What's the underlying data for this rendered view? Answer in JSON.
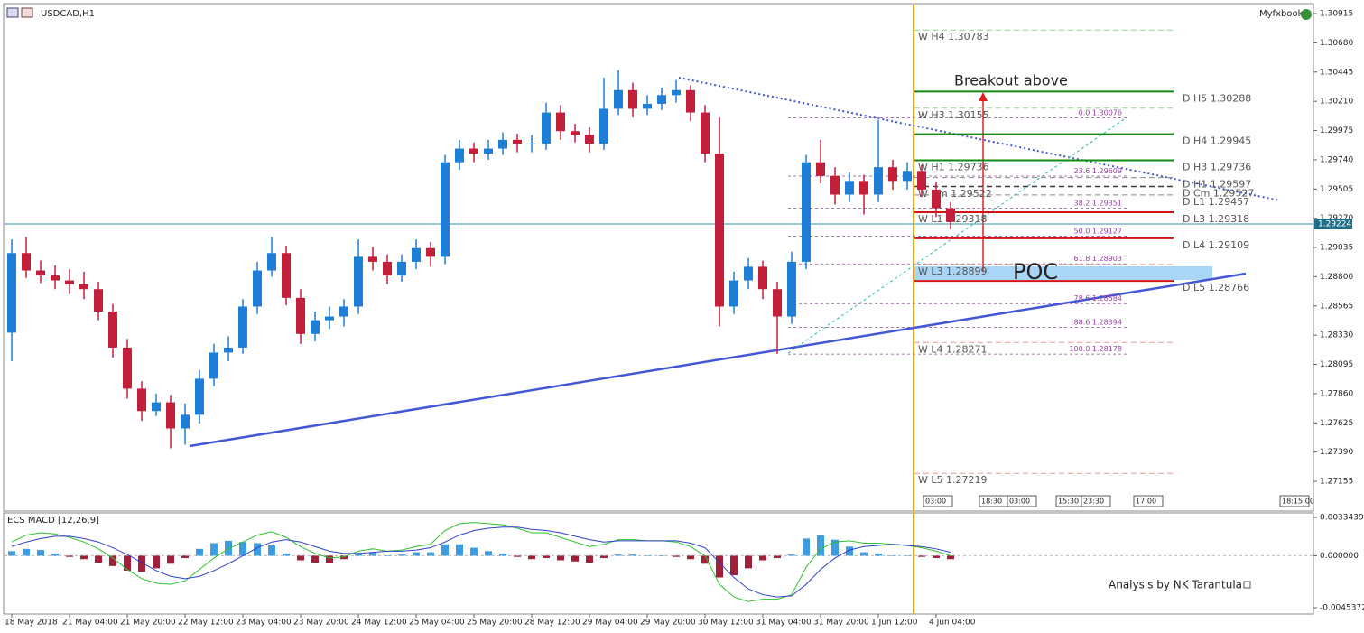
{
  "chart_data": [
    {
      "type": "candlestick",
      "title": "USDCAD,H1",
      "brand": "Myfxbook",
      "categories": [
        "18 May 2018",
        null,
        null,
        null,
        "21 May 04:00",
        null,
        null,
        null,
        "21 May 20:00",
        null,
        null,
        null,
        "22 May 12:00",
        null,
        null,
        null,
        "23 May 04:00",
        null,
        null,
        null,
        "23 May 20:00",
        null,
        null,
        null,
        "24 May 12:00",
        null,
        null,
        null,
        "25 May 04:00",
        null,
        null,
        null,
        "25 May 20:00",
        null,
        null,
        null,
        "28 May 12:00",
        null,
        null,
        null,
        "29 May 04:00",
        null,
        null,
        null,
        "29 May 20:00",
        null,
        null,
        null,
        "30 May 12:00",
        null,
        null,
        null,
        "31 May 04:00",
        null,
        null,
        null,
        "31 May 20:00",
        null,
        null,
        null,
        "1 Jun 12:00",
        null,
        null,
        null,
        "4 Jun 04:00",
        null
      ],
      "open": [
        1.2835,
        1.2899,
        1.2885,
        1.2881,
        1.2877,
        1.2874,
        1.287,
        1.2852,
        1.2823,
        1.279,
        1.2772,
        1.2779,
        1.2758,
        1.2769,
        1.2798,
        1.2819,
        1.2823,
        1.2856,
        1.2885,
        1.2899,
        1.2863,
        1.2834,
        1.2845,
        1.2848,
        1.2856,
        1.2896,
        1.2892,
        1.2881,
        1.2892,
        1.2903,
        1.2896,
        1.2972,
        1.2983,
        1.2979,
        1.2983,
        1.299,
        1.2987,
        1.2987,
        1.3012,
        1.2997,
        1.2994,
        1.2987,
        1.3015,
        1.303,
        1.3015,
        1.3019,
        1.3026,
        1.303,
        1.3012,
        1.2979,
        1.2856,
        1.2877,
        1.2888,
        1.287,
        1.2848,
        1.2892,
        1.2972,
        1.2961,
        1.2946,
        1.2957,
        1.2946,
        1.2968,
        1.2957,
        1.2965,
        1.295,
        1.2935
      ],
      "high": [
        1.291,
        1.2912,
        1.2893,
        1.2889,
        1.2886,
        1.2884,
        1.2876,
        1.2858,
        1.283,
        1.2796,
        1.2786,
        1.2785,
        1.2778,
        1.2805,
        1.2826,
        1.2832,
        1.2862,
        1.2892,
        1.2912,
        1.2905,
        1.287,
        1.2852,
        1.2856,
        1.2862,
        1.291,
        1.2904,
        1.2898,
        1.2898,
        1.291,
        1.2908,
        1.2978,
        1.299,
        1.2988,
        1.299,
        1.2996,
        1.2995,
        1.2994,
        1.302,
        1.3018,
        1.3003,
        1.3,
        1.304,
        1.3046,
        1.3036,
        1.3026,
        1.3032,
        1.3038,
        1.3034,
        1.3018,
        1.3008,
        1.2884,
        1.2895,
        1.2893,
        1.2876,
        1.29,
        1.2978,
        1.299,
        1.2968,
        1.2964,
        1.2962,
        1.3006,
        1.2974,
        1.2972,
        1.297,
        1.2956,
        1.294
      ],
      "low": [
        1.2812,
        1.2879,
        1.2875,
        1.287,
        1.2866,
        1.2862,
        1.2845,
        1.2815,
        1.2782,
        1.2764,
        1.2768,
        1.2742,
        1.2745,
        1.2762,
        1.2792,
        1.2812,
        1.2818,
        1.285,
        1.288,
        1.2857,
        1.2826,
        1.2828,
        1.2838,
        1.284,
        1.285,
        1.2885,
        1.2874,
        1.2876,
        1.2886,
        1.2888,
        1.289,
        1.2966,
        1.2972,
        1.2974,
        1.2978,
        1.298,
        1.298,
        1.2982,
        1.299,
        1.2988,
        1.298,
        1.2982,
        1.301,
        1.3008,
        1.301,
        1.3014,
        1.302,
        1.3005,
        1.2972,
        1.284,
        1.285,
        1.287,
        1.2862,
        1.2818,
        1.2842,
        1.2886,
        1.2955,
        1.2938,
        1.294,
        1.293,
        1.294,
        1.295,
        1.295,
        1.2944,
        1.2928,
        1.2918
      ],
      "close": [
        1.2899,
        1.2885,
        1.2881,
        1.2877,
        1.2874,
        1.287,
        1.2852,
        1.2823,
        1.279,
        1.2772,
        1.2779,
        1.2758,
        1.2769,
        1.2798,
        1.2819,
        1.2823,
        1.2856,
        1.2885,
        1.2899,
        1.2863,
        1.2834,
        1.2845,
        1.2848,
        1.2856,
        1.2896,
        1.2892,
        1.2881,
        1.2892,
        1.2903,
        1.2896,
        1.2972,
        1.2983,
        1.2979,
        1.2983,
        1.299,
        1.2987,
        1.2987,
        1.3012,
        1.2997,
        1.2994,
        1.2987,
        1.3015,
        1.303,
        1.3015,
        1.3019,
        1.3026,
        1.303,
        1.3012,
        1.2979,
        1.2856,
        1.2877,
        1.2888,
        1.287,
        1.2848,
        1.2892,
        1.2972,
        1.2961,
        1.2946,
        1.2957,
        1.2946,
        1.2968,
        1.2957,
        1.2965,
        1.295,
        1.2935,
        1.2924
      ],
      "up_color": "#1f7fd6",
      "down_color": "#c21f3a",
      "ylim": [
        1.26923,
        1.30988
      ],
      "yticks": [
        1.30915,
        {
          "value": 1.3068,
          "label": "1.30680"
        },
        1.30445,
        {
          "value": 1.3021,
          "label": "1.30210"
        },
        1.29975,
        {
          "value": 1.2974,
          "label": "1.29740"
        },
        1.29505,
        {
          "value": 1.2927,
          "label": "1.29270"
        },
        1.29035,
        {
          "value": 1.288,
          "label": "1.28800"
        },
        1.28565,
        {
          "value": 1.2833,
          "label": "1.28330"
        },
        1.28095,
        {
          "value": 1.2786,
          "label": "1.27860"
        },
        1.27625,
        {
          "value": 1.2739,
          "label": "1.27390"
        },
        1.27155
      ],
      "current_price": 1.29224,
      "pivots": [
        {
          "name": "W H4",
          "value": 1.30783,
          "color": "#8fd18f",
          "style": "dashed",
          "side": "left"
        },
        {
          "name": "W H3",
          "value": 1.30155,
          "color": "#8fd18f",
          "style": "dashed",
          "side": "left"
        },
        {
          "name": "W H1",
          "value": 1.29736,
          "color": "#8fd18f",
          "style": "dashed",
          "side": "left"
        },
        {
          "name": "W Cm",
          "value": 1.29522,
          "color": "#999999",
          "style": "dashed",
          "side": "left"
        },
        {
          "name": "W L1",
          "value": 1.29318,
          "color": "#e79a9a",
          "style": "dashed",
          "side": "left"
        },
        {
          "name": "W L3",
          "value": 1.28899,
          "color": "#e79a9a",
          "style": "dashed",
          "side": "left"
        },
        {
          "name": "W L4",
          "value": 1.28271,
          "color": "#e79a9a",
          "style": "dashed",
          "side": "left"
        },
        {
          "name": "W L5",
          "value": 1.27219,
          "color": "#e79a9a",
          "style": "dashed",
          "side": "left"
        },
        {
          "name": "D H5",
          "value": 1.30288,
          "color": "#118a11",
          "style": "solid",
          "side": "right"
        },
        {
          "name": "D H4",
          "value": 1.29945,
          "color": "#118a11",
          "style": "solid",
          "side": "right"
        },
        {
          "name": "D H3",
          "value": 1.29736,
          "color": "#118a11",
          "style": "solid",
          "side": "right"
        },
        {
          "name": "D H1",
          "value": 1.29597,
          "color": "#888888",
          "style": "dashed",
          "side": "right"
        },
        {
          "name": "D Cm",
          "value": 1.29527,
          "color": "#222222",
          "style": "dashed",
          "side": "right"
        },
        {
          "name": "D L1",
          "value": 1.29457,
          "color": "#888888",
          "style": "dashed",
          "side": "right"
        },
        {
          "name": "D L3",
          "value": 1.29318,
          "color": "#d41414",
          "style": "solid",
          "side": "right"
        },
        {
          "name": "D L4",
          "value": 1.29109,
          "color": "#d41414",
          "style": "solid",
          "side": "right"
        },
        {
          "name": "D L5",
          "value": 1.28766,
          "color": "#d41414",
          "style": "solid",
          "side": "right"
        }
      ],
      "fib_levels": [
        {
          "level": "0.0",
          "price": 1.30076
        },
        {
          "level": "23.6",
          "price": 1.29609
        },
        {
          "level": "38.2",
          "price": 1.29351
        },
        {
          "level": "50.0",
          "price": 1.29127
        },
        {
          "level": "61.8",
          "price": 1.28903
        },
        {
          "level": "78.6",
          "price": 1.28584
        },
        {
          "level": "88.6",
          "price": 1.28394
        },
        {
          "level": "100.0",
          "price": 1.28178
        }
      ],
      "fib_color": "#9b3fa8",
      "annotations": [
        "Breakout above",
        "POC",
        "Analysis by NK Tarantula"
      ],
      "time_boxes": [
        "03:00",
        "18:30",
        "03:00",
        "15:30",
        "23:30",
        "17:00",
        "18:15:00"
      ]
    },
    {
      "type": "macd",
      "title": "ECS MACD [12,26,9]",
      "ylim": [
        -0.0053252,
        0.003738
      ],
      "yticks": [
        0.0033439,
        {
          "value": 0,
          "label": "0.000000"
        },
        -0.0045372
      ],
      "histogram_up_color": "#3d9be0",
      "histogram_down_color": "#a0203a",
      "macd_color": "#2ec22e",
      "signal_color": "#3040c8",
      "histogram": [
        0.0004,
        0.0006,
        0.0005,
        0.0002,
        -0.0001,
        -0.0003,
        -0.0006,
        -0.0009,
        -0.0013,
        -0.0014,
        -0.0011,
        -0.0007,
        -0.0002,
        0.0006,
        0.0011,
        0.0013,
        0.0012,
        0.0011,
        0.0009,
        0.0002,
        -0.0004,
        -0.0006,
        -0.0006,
        -0.0003,
        0.0002,
        0.0003,
        0.0,
        0.0001,
        0.0003,
        0.0003,
        0.001,
        0.001,
        0.0007,
        0.0004,
        0.0002,
        -0.0001,
        -0.0003,
        -0.0002,
        -0.0004,
        -0.0005,
        -0.0006,
        -0.0002,
        0.0001,
        0.0001,
        0.0,
        0.0,
        -0.0001,
        -0.0003,
        -0.0007,
        -0.0019,
        -0.0017,
        -0.0011,
        -0.0004,
        -0.0002,
        0.0001,
        0.0015,
        0.0018,
        0.0014,
        0.0008,
        0.0003,
        0.0002,
        0.0,
        0.0,
        -0.0001,
        -0.0002,
        -0.0003
      ],
      "macd": [
        0.0012,
        0.0018,
        0.002,
        0.0019,
        0.0016,
        0.0012,
        0.0006,
        -0.0002,
        -0.0012,
        -0.002,
        -0.0024,
        -0.0025,
        -0.0022,
        -0.0012,
        -0.0002,
        0.0006,
        0.0012,
        0.0018,
        0.0021,
        0.0016,
        0.0008,
        0.0002,
        -0.0002,
        -0.0001,
        0.0004,
        0.0006,
        0.0004,
        0.0005,
        0.0008,
        0.001,
        0.0022,
        0.0028,
        0.0029,
        0.0028,
        0.0027,
        0.0024,
        0.002,
        0.002,
        0.0016,
        0.0012,
        0.0008,
        0.001,
        0.0014,
        0.0014,
        0.0013,
        0.0013,
        0.0012,
        0.0008,
        0.0,
        -0.0025,
        -0.0036,
        -0.004,
        -0.0038,
        -0.0038,
        -0.0034,
        -0.001,
        0.0006,
        0.0012,
        0.0013,
        0.0011,
        0.0011,
        0.001,
        0.0009,
        0.0007,
        0.0004,
        0.0
      ],
      "signal": [
        0.0008,
        0.0012,
        0.0015,
        0.0017,
        0.0017,
        0.0015,
        0.0012,
        0.0007,
        0.0001,
        -0.0006,
        -0.0013,
        -0.0018,
        -0.002,
        -0.0018,
        -0.0013,
        -0.0007,
        0.0,
        0.0007,
        0.0012,
        0.0014,
        0.0012,
        0.0008,
        0.0004,
        0.0002,
        0.0002,
        0.0003,
        0.0004,
        0.0004,
        0.0005,
        0.0007,
        0.0012,
        0.0018,
        0.0022,
        0.0024,
        0.0025,
        0.0025,
        0.0023,
        0.0022,
        0.002,
        0.0017,
        0.0014,
        0.0012,
        0.0013,
        0.0013,
        0.0013,
        0.0013,
        0.0013,
        0.0011,
        0.0007,
        -0.0006,
        -0.0019,
        -0.0029,
        -0.0034,
        -0.0036,
        -0.0035,
        -0.0025,
        -0.0012,
        -0.0002,
        0.0005,
        0.0008,
        0.0009,
        0.001,
        0.0009,
        0.0008,
        0.0006,
        0.0003
      ]
    }
  ]
}
